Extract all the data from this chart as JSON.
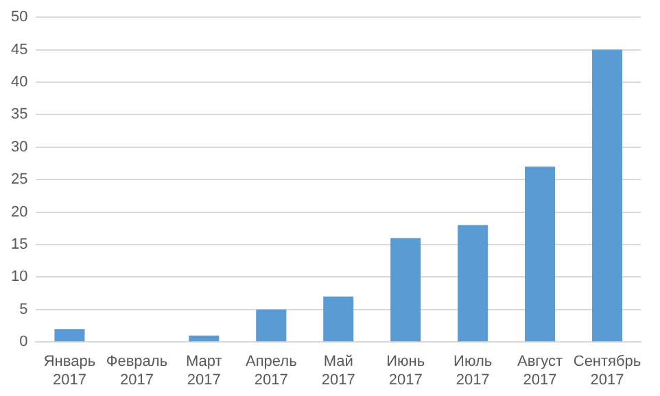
{
  "chart_data": {
    "type": "bar",
    "categories": [
      "Январь 2017",
      "Февраль 2017",
      "Март 2017",
      "Апрель 2017",
      "Май 2017",
      "Июнь 2017",
      "Июль 2017",
      "Август 2017",
      "Сентябрь 2017"
    ],
    "values": [
      2,
      0,
      1,
      5,
      7,
      16,
      18,
      27,
      45
    ],
    "color": "#5b9bd5",
    "ylim": [
      0,
      50
    ],
    "yticks": [
      0,
      5,
      10,
      15,
      20,
      25,
      30,
      35,
      40,
      45,
      50
    ],
    "grid": "y",
    "legend": false
  }
}
